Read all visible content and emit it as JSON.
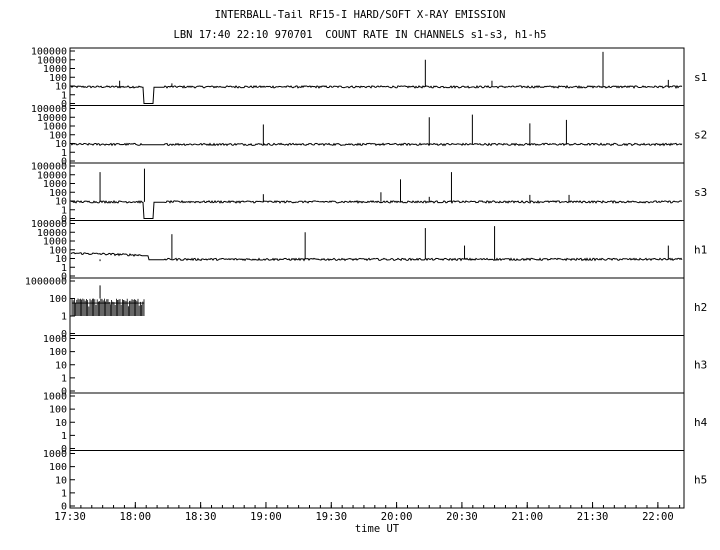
{
  "title_line1": "INTERBALL-Tail RF15-I HARD/SOFT X-RAY EMISSION",
  "title_line2": "LBN 17:40 22:10 970701  COUNT RATE IN CHANNELS s1-s3, h1-h5",
  "chart_data": {
    "type": "line",
    "xlabel": "time UT",
    "x_ticks": [
      "17:30",
      "18:00",
      "18:30",
      "19:00",
      "19:30",
      "20:00",
      "20:30",
      "21:00",
      "21:30",
      "22:00"
    ],
    "x_range_hours": [
      17.5,
      22.2
    ],
    "data_gap": [
      18.05,
      18.22
    ],
    "panels": [
      {
        "name": "s1",
        "yticks": [
          "100000",
          "10000",
          "1000",
          "100",
          "10",
          "1",
          "0"
        ],
        "baseline": 8,
        "dropouts": [
          [
            18.06,
            18.14
          ]
        ],
        "spikes": [
          [
            17.88,
            40
          ],
          [
            18.28,
            20
          ],
          [
            20.22,
            10000
          ],
          [
            20.73,
            40
          ],
          [
            21.58,
            80000
          ],
          [
            22.08,
            50
          ]
        ]
      },
      {
        "name": "s2",
        "yticks": [
          "100000",
          "10000",
          "1000",
          "100",
          "10",
          "1",
          "0"
        ],
        "baseline": 8,
        "dropouts": [],
        "spikes": [
          [
            18.98,
            1500
          ],
          [
            20.25,
            10000
          ],
          [
            20.58,
            20000
          ],
          [
            21.02,
            2000
          ],
          [
            21.3,
            5000
          ]
        ]
      },
      {
        "name": "s3",
        "yticks": [
          "100000",
          "10000",
          "1000",
          "100",
          "10",
          "1",
          "0"
        ],
        "baseline": 8,
        "dropouts": [
          [
            18.06,
            18.14
          ]
        ],
        "spikes": [
          [
            17.73,
            20000
          ],
          [
            18.07,
            50000
          ],
          [
            18.98,
            60
          ],
          [
            19.88,
            100
          ],
          [
            20.03,
            3000
          ],
          [
            20.25,
            30
          ],
          [
            20.42,
            20000
          ],
          [
            21.02,
            50
          ],
          [
            21.32,
            50
          ]
        ]
      },
      {
        "name": "h1",
        "yticks": [
          "100000",
          "10000",
          "1000",
          "100",
          "10",
          "1",
          "0"
        ],
        "baseline": 8,
        "dropouts": [],
        "spikes": [
          [
            17.73,
            5
          ],
          [
            18.28,
            6000
          ],
          [
            19.3,
            10000
          ],
          [
            20.22,
            30000
          ],
          [
            20.52,
            300
          ],
          [
            20.75,
            50000
          ],
          [
            22.08,
            300
          ]
        ]
      },
      {
        "name": "h2",
        "yticks": [
          "1000000",
          "100",
          "1",
          "0"
        ],
        "baseline": 0,
        "dropouts": [],
        "spikes": []
      },
      {
        "name": "h3",
        "yticks": [
          "1000",
          "100",
          "10",
          "1",
          "0"
        ],
        "baseline": 0,
        "dropouts": [],
        "spikes": []
      },
      {
        "name": "h4",
        "yticks": [
          "1000",
          "100",
          "10",
          "1",
          "0"
        ],
        "baseline": 0,
        "dropouts": [],
        "spikes": []
      },
      {
        "name": "h5",
        "yticks": [
          "1000",
          "100",
          "10",
          "1",
          "0"
        ],
        "baseline": 0,
        "dropouts": [],
        "spikes": []
      }
    ]
  }
}
